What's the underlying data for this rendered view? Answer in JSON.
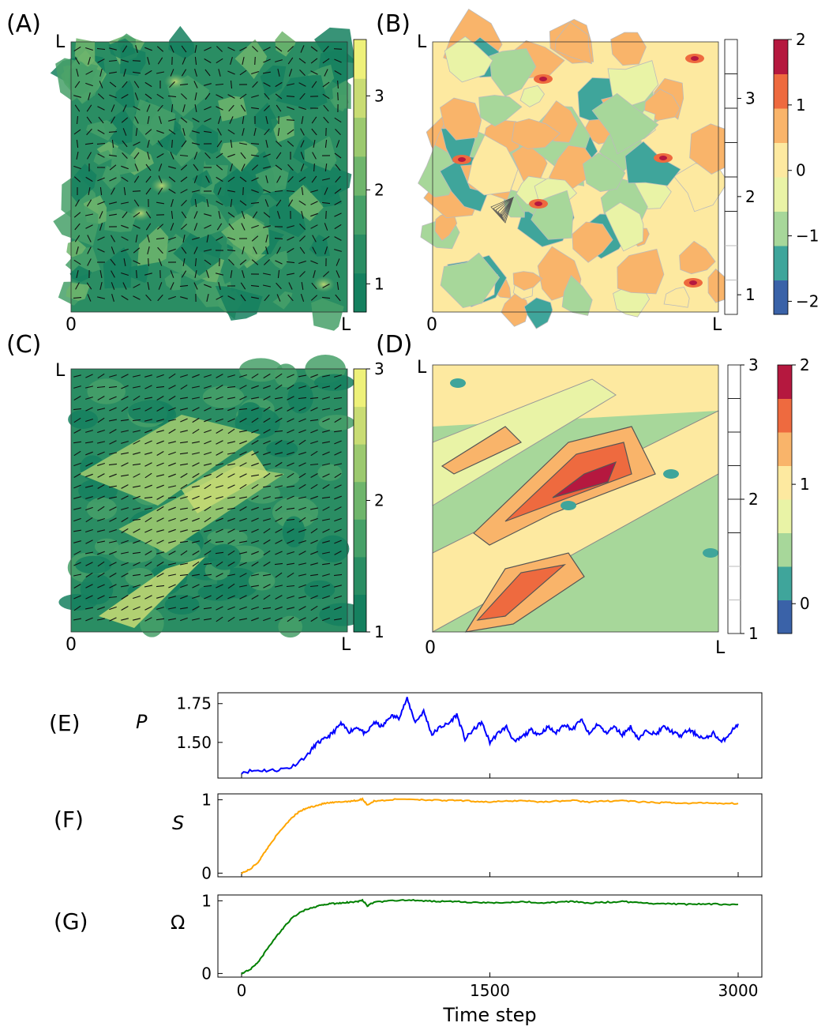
{
  "panels": {
    "A": {
      "label": "(A)",
      "corner_top": "L",
      "corner_origin": "0",
      "corner_right": "L",
      "colorbar_ticks": [
        "1",
        "2",
        "3"
      ],
      "colorbar_values": [
        1,
        2,
        3
      ]
    },
    "B": {
      "label": "(B)",
      "corner_top": "L",
      "corner_origin": "0",
      "corner_right": "L",
      "gray_bar_ticks": [
        "1",
        "2",
        "3"
      ],
      "gray_bar_values": [
        1,
        2,
        3
      ],
      "colorbar_ticks": [
        "2",
        "1",
        "0",
        "−1",
        "−2"
      ],
      "colorbar_values": [
        2,
        1,
        0,
        -1,
        -2
      ]
    },
    "C": {
      "label": "(C)",
      "corner_top": "L",
      "corner_origin": "0",
      "corner_right": "L",
      "colorbar_ticks": [
        "1",
        "2",
        "3"
      ],
      "colorbar_values": [
        1,
        2,
        3
      ]
    },
    "D": {
      "label": "(D)",
      "corner_top": "L",
      "corner_origin": "0",
      "corner_right": "L",
      "gray_bar_ticks": [
        "1",
        "2",
        "3"
      ],
      "gray_bar_values": [
        1,
        2,
        3
      ],
      "colorbar_ticks": [
        "2",
        "1",
        "0"
      ],
      "colorbar_values": [
        2,
        1,
        0
      ]
    },
    "E": {
      "label": "(E)",
      "ylabel": "P"
    },
    "F": {
      "label": "(F)",
      "ylabel": "S"
    },
    "G": {
      "label": "(G)",
      "ylabel": "Ω"
    }
  },
  "colors": {
    "viridis_green": [
      "#15805f",
      "#2a8d63",
      "#47a068",
      "#6fb56c",
      "#9cc96f",
      "#c9dc74",
      "#eef17a"
    ],
    "spectral": [
      "#3a62a8",
      "#3fa59b",
      "#a7d79a",
      "#e9f3a6",
      "#fde9a0",
      "#f9b46a",
      "#ee6a3f",
      "#b5183f"
    ],
    "P_line": "#0000ff",
    "S_line": "#ffa500",
    "Omega_line": "#008000"
  },
  "chart_data": [
    {
      "type": "line",
      "name": "E",
      "ylabel": "P",
      "xlim": [
        0,
        3000
      ],
      "ylim": [
        1.27,
        1.82
      ],
      "yticks": [
        "1.50",
        "1.75"
      ],
      "ytick_values": [
        1.5,
        1.75
      ],
      "xticks": [
        0,
        1500,
        3000
      ],
      "x": [
        0,
        100,
        200,
        300,
        400,
        450,
        500,
        550,
        600,
        650,
        700,
        750,
        800,
        850,
        900,
        950,
        1000,
        1050,
        1100,
        1150,
        1200,
        1250,
        1300,
        1350,
        1400,
        1450,
        1500,
        1550,
        1600,
        1650,
        1700,
        1750,
        1800,
        1850,
        1900,
        1950,
        2000,
        2050,
        2100,
        2150,
        2200,
        2250,
        2300,
        2350,
        2400,
        2450,
        2500,
        2550,
        2600,
        2650,
        2700,
        2750,
        2800,
        2850,
        2900,
        2950,
        3000
      ],
      "series": [
        {
          "values": [
            1.31,
            1.32,
            1.32,
            1.34,
            1.42,
            1.49,
            1.52,
            1.56,
            1.62,
            1.57,
            1.6,
            1.55,
            1.63,
            1.6,
            1.67,
            1.66,
            1.78,
            1.63,
            1.7,
            1.55,
            1.6,
            1.62,
            1.68,
            1.52,
            1.58,
            1.63,
            1.5,
            1.56,
            1.6,
            1.5,
            1.54,
            1.58,
            1.55,
            1.6,
            1.56,
            1.62,
            1.58,
            1.65,
            1.55,
            1.62,
            1.56,
            1.6,
            1.55,
            1.6,
            1.52,
            1.58,
            1.55,
            1.6,
            1.57,
            1.54,
            1.58,
            1.55,
            1.52,
            1.56,
            1.5,
            1.56,
            1.62
          ]
        }
      ]
    },
    {
      "type": "line",
      "name": "F",
      "ylabel": "S",
      "xlim": [
        0,
        3000
      ],
      "ylim": [
        -0.05,
        1.08
      ],
      "yticks": [
        "0",
        "1"
      ],
      "ytick_values": [
        0,
        1
      ],
      "xticks": [
        0,
        1500,
        3000
      ],
      "x": [
        0,
        50,
        100,
        150,
        200,
        250,
        300,
        350,
        400,
        450,
        500,
        550,
        600,
        650,
        700,
        730,
        760,
        800,
        900,
        1000,
        1100,
        1200,
        1300,
        1400,
        1500,
        1600,
        1700,
        1800,
        1900,
        2000,
        2100,
        2200,
        2300,
        2400,
        2500,
        2600,
        2700,
        2800,
        2900,
        3000
      ],
      "series": [
        {
          "values": [
            0.0,
            0.05,
            0.15,
            0.32,
            0.48,
            0.62,
            0.75,
            0.84,
            0.89,
            0.92,
            0.95,
            0.96,
            0.97,
            0.98,
            0.99,
            1.01,
            0.93,
            0.98,
            1.0,
            1.01,
            1.0,
            0.99,
            0.99,
            0.98,
            0.97,
            0.98,
            0.99,
            0.97,
            0.98,
            0.99,
            0.97,
            0.98,
            0.99,
            0.97,
            0.96,
            0.96,
            0.95,
            0.96,
            0.95,
            0.95
          ]
        }
      ]
    },
    {
      "type": "line",
      "name": "G",
      "ylabel": "Ω",
      "xlim": [
        0,
        3000
      ],
      "ylim": [
        -0.05,
        1.08
      ],
      "yticks": [
        "0",
        "1"
      ],
      "ytick_values": [
        0,
        1
      ],
      "xticks": [
        "0",
        "1500",
        "3000"
      ],
      "xtick_values": [
        0,
        1500,
        3000
      ],
      "xlabel": "Time step",
      "x": [
        0,
        50,
        100,
        150,
        200,
        250,
        300,
        350,
        400,
        450,
        500,
        550,
        600,
        650,
        700,
        730,
        760,
        800,
        900,
        1000,
        1100,
        1200,
        1300,
        1400,
        1500,
        1600,
        1700,
        1800,
        1900,
        2000,
        2100,
        2200,
        2300,
        2400,
        2500,
        2600,
        2700,
        2800,
        2900,
        3000
      ],
      "series": [
        {
          "values": [
            0.0,
            0.05,
            0.15,
            0.32,
            0.48,
            0.62,
            0.75,
            0.84,
            0.89,
            0.92,
            0.95,
            0.96,
            0.97,
            0.98,
            0.99,
            1.01,
            0.93,
            0.98,
            1.0,
            1.01,
            1.0,
            0.99,
            0.99,
            0.98,
            0.97,
            0.98,
            0.99,
            0.97,
            0.98,
            0.99,
            0.97,
            0.98,
            0.99,
            0.97,
            0.96,
            0.96,
            0.95,
            0.96,
            0.95,
            0.95
          ]
        }
      ]
    }
  ]
}
